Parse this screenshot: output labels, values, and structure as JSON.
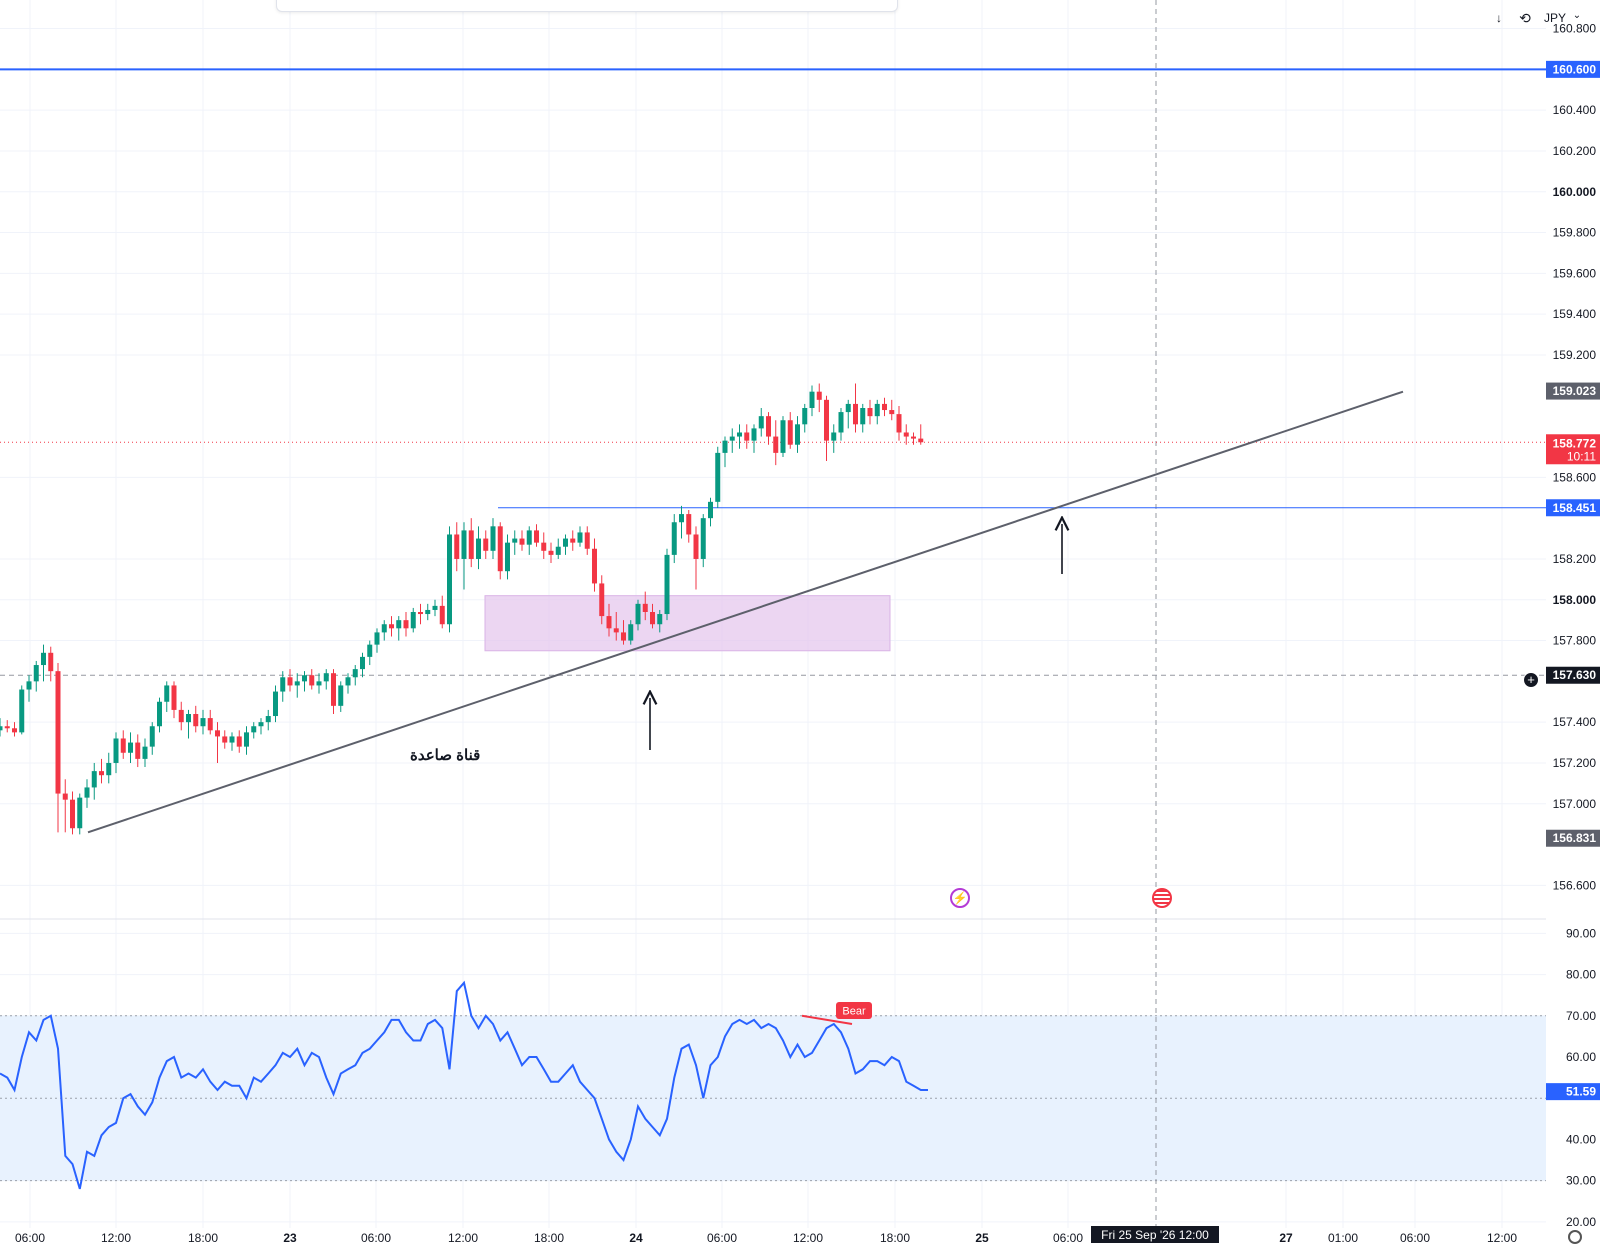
{
  "top_controls": {
    "download_glyph": "↓",
    "sync_glyph": "⟲",
    "currency": "JPY",
    "currency_caret": "⌄"
  },
  "chart_data": {
    "type": "candlestick",
    "price_axis": {
      "range": [
        156.44,
        160.94
      ],
      "ticks": [
        "160.800",
        "160.400",
        "160.200",
        "160.000",
        "159.800",
        "159.600",
        "159.400",
        "159.200",
        "158.600",
        "158.200",
        "158.000",
        "157.800",
        "157.400",
        "157.200",
        "157.000",
        "156.600"
      ]
    },
    "time_axis": {
      "labels": [
        "06:00",
        "12:00",
        "18:00",
        "23",
        "06:00",
        "12:00",
        "18:00",
        "24",
        "06:00",
        "12:00",
        "18:00",
        "25",
        "06:00",
        "27",
        "01:00",
        "06:00",
        "12:00"
      ],
      "crosshair_label": "Fri 25 Sep '26   12:00"
    },
    "candles": [
      {
        "o": 157.36,
        "h": 157.42,
        "l": 157.33,
        "c": 157.38
      },
      {
        "o": 157.38,
        "h": 157.41,
        "l": 157.35,
        "c": 157.37
      },
      {
        "o": 157.37,
        "h": 157.4,
        "l": 157.33,
        "c": 157.35
      },
      {
        "o": 157.35,
        "h": 157.58,
        "l": 157.34,
        "c": 157.56
      },
      {
        "o": 157.56,
        "h": 157.63,
        "l": 157.5,
        "c": 157.6
      },
      {
        "o": 157.6,
        "h": 157.7,
        "l": 157.55,
        "c": 157.68
      },
      {
        "o": 157.68,
        "h": 157.78,
        "l": 157.6,
        "c": 157.74
      },
      {
        "o": 157.74,
        "h": 157.77,
        "l": 157.6,
        "c": 157.65
      },
      {
        "o": 157.65,
        "h": 157.69,
        "l": 156.86,
        "c": 157.05
      },
      {
        "o": 157.05,
        "h": 157.12,
        "l": 156.86,
        "c": 157.02
      },
      {
        "o": 157.02,
        "h": 157.06,
        "l": 156.85,
        "c": 156.88
      },
      {
        "o": 156.88,
        "h": 157.05,
        "l": 156.85,
        "c": 157.03
      },
      {
        "o": 157.03,
        "h": 157.12,
        "l": 156.98,
        "c": 157.08
      },
      {
        "o": 157.08,
        "h": 157.2,
        "l": 157.02,
        "c": 157.16
      },
      {
        "o": 157.16,
        "h": 157.22,
        "l": 157.1,
        "c": 157.14
      },
      {
        "o": 157.14,
        "h": 157.25,
        "l": 157.1,
        "c": 157.2
      },
      {
        "o": 157.2,
        "h": 157.35,
        "l": 157.15,
        "c": 157.32
      },
      {
        "o": 157.32,
        "h": 157.36,
        "l": 157.22,
        "c": 157.25
      },
      {
        "o": 157.25,
        "h": 157.35,
        "l": 157.2,
        "c": 157.3
      },
      {
        "o": 157.3,
        "h": 157.34,
        "l": 157.18,
        "c": 157.22
      },
      {
        "o": 157.22,
        "h": 157.32,
        "l": 157.18,
        "c": 157.28
      },
      {
        "o": 157.28,
        "h": 157.4,
        "l": 157.24,
        "c": 157.38
      },
      {
        "o": 157.38,
        "h": 157.52,
        "l": 157.35,
        "c": 157.5
      },
      {
        "o": 157.5,
        "h": 157.6,
        "l": 157.45,
        "c": 157.58
      },
      {
        "o": 157.58,
        "h": 157.6,
        "l": 157.42,
        "c": 157.46
      },
      {
        "o": 157.46,
        "h": 157.5,
        "l": 157.36,
        "c": 157.4
      },
      {
        "o": 157.4,
        "h": 157.46,
        "l": 157.32,
        "c": 157.44
      },
      {
        "o": 157.44,
        "h": 157.48,
        "l": 157.35,
        "c": 157.38
      },
      {
        "o": 157.38,
        "h": 157.46,
        "l": 157.34,
        "c": 157.42
      },
      {
        "o": 157.42,
        "h": 157.46,
        "l": 157.34,
        "c": 157.36
      },
      {
        "o": 157.36,
        "h": 157.4,
        "l": 157.2,
        "c": 157.33
      },
      {
        "o": 157.33,
        "h": 157.36,
        "l": 157.27,
        "c": 157.3
      },
      {
        "o": 157.3,
        "h": 157.35,
        "l": 157.26,
        "c": 157.33
      },
      {
        "o": 157.33,
        "h": 157.36,
        "l": 157.25,
        "c": 157.28
      },
      {
        "o": 157.28,
        "h": 157.38,
        "l": 157.24,
        "c": 157.35
      },
      {
        "o": 157.35,
        "h": 157.4,
        "l": 157.32,
        "c": 157.38
      },
      {
        "o": 157.38,
        "h": 157.42,
        "l": 157.34,
        "c": 157.4
      },
      {
        "o": 157.4,
        "h": 157.46,
        "l": 157.36,
        "c": 157.43
      },
      {
        "o": 157.43,
        "h": 157.58,
        "l": 157.4,
        "c": 157.55
      },
      {
        "o": 157.55,
        "h": 157.65,
        "l": 157.5,
        "c": 157.62
      },
      {
        "o": 157.62,
        "h": 157.66,
        "l": 157.55,
        "c": 157.58
      },
      {
        "o": 157.58,
        "h": 157.64,
        "l": 157.52,
        "c": 157.6
      },
      {
        "o": 157.6,
        "h": 157.65,
        "l": 157.55,
        "c": 157.63
      },
      {
        "o": 157.63,
        "h": 157.66,
        "l": 157.56,
        "c": 157.58
      },
      {
        "o": 157.58,
        "h": 157.64,
        "l": 157.54,
        "c": 157.6
      },
      {
        "o": 157.6,
        "h": 157.66,
        "l": 157.56,
        "c": 157.64
      },
      {
        "o": 157.64,
        "h": 157.66,
        "l": 157.44,
        "c": 157.48
      },
      {
        "o": 157.48,
        "h": 157.6,
        "l": 157.45,
        "c": 157.58
      },
      {
        "o": 157.58,
        "h": 157.64,
        "l": 157.54,
        "c": 157.62
      },
      {
        "o": 157.62,
        "h": 157.68,
        "l": 157.58,
        "c": 157.66
      },
      {
        "o": 157.66,
        "h": 157.74,
        "l": 157.62,
        "c": 157.72
      },
      {
        "o": 157.72,
        "h": 157.8,
        "l": 157.68,
        "c": 157.78
      },
      {
        "o": 157.78,
        "h": 157.86,
        "l": 157.74,
        "c": 157.84
      },
      {
        "o": 157.84,
        "h": 157.9,
        "l": 157.8,
        "c": 157.88
      },
      {
        "o": 157.88,
        "h": 157.92,
        "l": 157.82,
        "c": 157.86
      },
      {
        "o": 157.86,
        "h": 157.92,
        "l": 157.8,
        "c": 157.9
      },
      {
        "o": 157.9,
        "h": 157.94,
        "l": 157.82,
        "c": 157.86
      },
      {
        "o": 157.86,
        "h": 157.96,
        "l": 157.84,
        "c": 157.94
      },
      {
        "o": 157.94,
        "h": 157.98,
        "l": 157.88,
        "c": 157.93
      },
      {
        "o": 157.93,
        "h": 157.98,
        "l": 157.9,
        "c": 157.95
      },
      {
        "o": 157.95,
        "h": 158.0,
        "l": 157.92,
        "c": 157.97
      },
      {
        "o": 157.97,
        "h": 158.02,
        "l": 157.86,
        "c": 157.88
      },
      {
        "o": 157.88,
        "h": 158.36,
        "l": 157.84,
        "c": 158.32
      },
      {
        "o": 158.32,
        "h": 158.38,
        "l": 158.14,
        "c": 158.2
      },
      {
        "o": 158.2,
        "h": 158.38,
        "l": 158.05,
        "c": 158.34
      },
      {
        "o": 158.34,
        "h": 158.4,
        "l": 158.16,
        "c": 158.2
      },
      {
        "o": 158.2,
        "h": 158.36,
        "l": 158.15,
        "c": 158.3
      },
      {
        "o": 158.3,
        "h": 158.34,
        "l": 158.2,
        "c": 158.24
      },
      {
        "o": 158.24,
        "h": 158.4,
        "l": 158.2,
        "c": 158.36
      },
      {
        "o": 158.36,
        "h": 158.38,
        "l": 158.1,
        "c": 158.14
      },
      {
        "o": 158.14,
        "h": 158.32,
        "l": 158.1,
        "c": 158.28
      },
      {
        "o": 158.28,
        "h": 158.34,
        "l": 158.22,
        "c": 158.3
      },
      {
        "o": 158.3,
        "h": 158.34,
        "l": 158.24,
        "c": 158.27
      },
      {
        "o": 158.27,
        "h": 158.36,
        "l": 158.22,
        "c": 158.34
      },
      {
        "o": 158.34,
        "h": 158.37,
        "l": 158.26,
        "c": 158.28
      },
      {
        "o": 158.28,
        "h": 158.33,
        "l": 158.2,
        "c": 158.24
      },
      {
        "o": 158.24,
        "h": 158.28,
        "l": 158.18,
        "c": 158.22
      },
      {
        "o": 158.22,
        "h": 158.3,
        "l": 158.2,
        "c": 158.26
      },
      {
        "o": 158.26,
        "h": 158.32,
        "l": 158.22,
        "c": 158.3
      },
      {
        "o": 158.3,
        "h": 158.34,
        "l": 158.24,
        "c": 158.28
      },
      {
        "o": 158.28,
        "h": 158.36,
        "l": 158.26,
        "c": 158.33
      },
      {
        "o": 158.33,
        "h": 158.36,
        "l": 158.22,
        "c": 158.25
      },
      {
        "o": 158.25,
        "h": 158.3,
        "l": 158.04,
        "c": 158.08
      },
      {
        "o": 158.08,
        "h": 158.12,
        "l": 157.88,
        "c": 157.92
      },
      {
        "o": 157.92,
        "h": 157.98,
        "l": 157.82,
        "c": 157.86
      },
      {
        "o": 157.86,
        "h": 157.94,
        "l": 157.8,
        "c": 157.84
      },
      {
        "o": 157.84,
        "h": 157.9,
        "l": 157.78,
        "c": 157.8
      },
      {
        "o": 157.8,
        "h": 157.9,
        "l": 157.78,
        "c": 157.88
      },
      {
        "o": 157.88,
        "h": 158.0,
        "l": 157.85,
        "c": 157.98
      },
      {
        "o": 157.98,
        "h": 158.04,
        "l": 157.9,
        "c": 157.94
      },
      {
        "o": 157.94,
        "h": 157.98,
        "l": 157.86,
        "c": 157.88
      },
      {
        "o": 157.88,
        "h": 157.95,
        "l": 157.84,
        "c": 157.93
      },
      {
        "o": 157.93,
        "h": 158.25,
        "l": 157.9,
        "c": 158.22
      },
      {
        "o": 158.22,
        "h": 158.42,
        "l": 158.18,
        "c": 158.38
      },
      {
        "o": 158.38,
        "h": 158.46,
        "l": 158.3,
        "c": 158.42
      },
      {
        "o": 158.42,
        "h": 158.44,
        "l": 158.28,
        "c": 158.32
      },
      {
        "o": 158.32,
        "h": 158.36,
        "l": 158.05,
        "c": 158.2
      },
      {
        "o": 158.2,
        "h": 158.42,
        "l": 158.16,
        "c": 158.4
      },
      {
        "o": 158.4,
        "h": 158.5,
        "l": 158.36,
        "c": 158.48
      },
      {
        "o": 158.48,
        "h": 158.75,
        "l": 158.45,
        "c": 158.72
      },
      {
        "o": 158.72,
        "h": 158.8,
        "l": 158.65,
        "c": 158.78
      },
      {
        "o": 158.78,
        "h": 158.84,
        "l": 158.72,
        "c": 158.8
      },
      {
        "o": 158.8,
        "h": 158.86,
        "l": 158.74,
        "c": 158.82
      },
      {
        "o": 158.82,
        "h": 158.86,
        "l": 158.74,
        "c": 158.78
      },
      {
        "o": 158.78,
        "h": 158.86,
        "l": 158.72,
        "c": 158.84
      },
      {
        "o": 158.84,
        "h": 158.94,
        "l": 158.8,
        "c": 158.9
      },
      {
        "o": 158.9,
        "h": 158.92,
        "l": 158.76,
        "c": 158.8
      },
      {
        "o": 158.8,
        "h": 158.88,
        "l": 158.66,
        "c": 158.72
      },
      {
        "o": 158.72,
        "h": 158.9,
        "l": 158.7,
        "c": 158.88
      },
      {
        "o": 158.88,
        "h": 158.92,
        "l": 158.74,
        "c": 158.76
      },
      {
        "o": 158.76,
        "h": 158.9,
        "l": 158.72,
        "c": 158.86
      },
      {
        "o": 158.86,
        "h": 158.96,
        "l": 158.82,
        "c": 158.94
      },
      {
        "o": 158.94,
        "h": 159.05,
        "l": 158.9,
        "c": 159.02
      },
      {
        "o": 159.02,
        "h": 159.06,
        "l": 158.92,
        "c": 158.98
      },
      {
        "o": 158.98,
        "h": 159.0,
        "l": 158.68,
        "c": 158.78
      },
      {
        "o": 158.78,
        "h": 158.86,
        "l": 158.72,
        "c": 158.82
      },
      {
        "o": 158.82,
        "h": 158.94,
        "l": 158.78,
        "c": 158.92
      },
      {
        "o": 158.92,
        "h": 158.98,
        "l": 158.84,
        "c": 158.96
      },
      {
        "o": 158.96,
        "h": 159.06,
        "l": 158.82,
        "c": 158.86
      },
      {
        "o": 158.86,
        "h": 158.96,
        "l": 158.82,
        "c": 158.94
      },
      {
        "o": 158.94,
        "h": 158.98,
        "l": 158.86,
        "c": 158.9
      },
      {
        "o": 158.9,
        "h": 158.98,
        "l": 158.86,
        "c": 158.96
      },
      {
        "o": 158.96,
        "h": 158.99,
        "l": 158.9,
        "c": 158.93
      },
      {
        "o": 158.93,
        "h": 158.98,
        "l": 158.88,
        "c": 158.91
      },
      {
        "o": 158.91,
        "h": 158.95,
        "l": 158.78,
        "c": 158.82
      },
      {
        "o": 158.82,
        "h": 158.86,
        "l": 158.76,
        "c": 158.8
      },
      {
        "o": 158.8,
        "h": 158.82,
        "l": 158.76,
        "c": 158.79
      },
      {
        "o": 158.79,
        "h": 158.86,
        "l": 158.76,
        "c": 158.772
      }
    ],
    "annotations": {
      "resistance_price": "160.600",
      "support_price": "158.451",
      "hi_price": "159.023",
      "lo_price": "156.831",
      "cursor_price": "157.630",
      "last_price": "158.772",
      "countdown": "10:11",
      "channel_label": "قناة صاعدة",
      "zone": {
        "from": 157.75,
        "to": 158.02
      }
    },
    "rsi": {
      "axis": {
        "range": [
          18.5,
          93
        ],
        "ticks": [
          "90.00",
          "80.00",
          "70.00",
          "60.00",
          "40.00",
          "30.00",
          "20.00"
        ]
      },
      "band": [
        30,
        70
      ],
      "mid": 50,
      "current": "51.59",
      "signal_label": "Bear",
      "values": [
        56,
        55,
        52,
        60,
        66,
        64,
        69,
        70,
        62,
        36,
        34,
        28,
        37,
        36,
        41,
        43,
        44,
        50,
        51,
        48,
        46,
        49,
        55,
        59,
        60,
        55,
        56,
        55,
        57,
        54,
        52,
        54,
        53,
        53,
        50,
        55,
        54,
        56,
        58,
        61,
        60,
        62,
        58,
        61,
        60,
        55,
        51,
        56,
        57,
        58,
        61,
        62,
        64,
        66,
        69,
        69,
        66,
        64,
        64,
        68,
        69,
        67,
        57,
        76,
        78,
        70,
        67,
        70,
        68,
        64,
        66,
        62,
        58,
        60,
        60,
        57,
        54,
        54,
        56,
        58,
        54,
        52,
        50,
        45,
        40,
        37,
        35,
        40,
        48,
        45,
        43,
        41,
        45,
        55,
        62,
        63,
        58,
        50,
        58,
        60,
        65,
        68,
        69,
        68,
        69,
        67,
        68,
        67,
        64,
        60,
        63,
        60,
        61,
        64,
        67,
        68,
        66,
        62,
        56,
        57,
        59,
        59,
        58,
        60,
        59,
        54,
        53,
        52,
        52
      ]
    }
  }
}
